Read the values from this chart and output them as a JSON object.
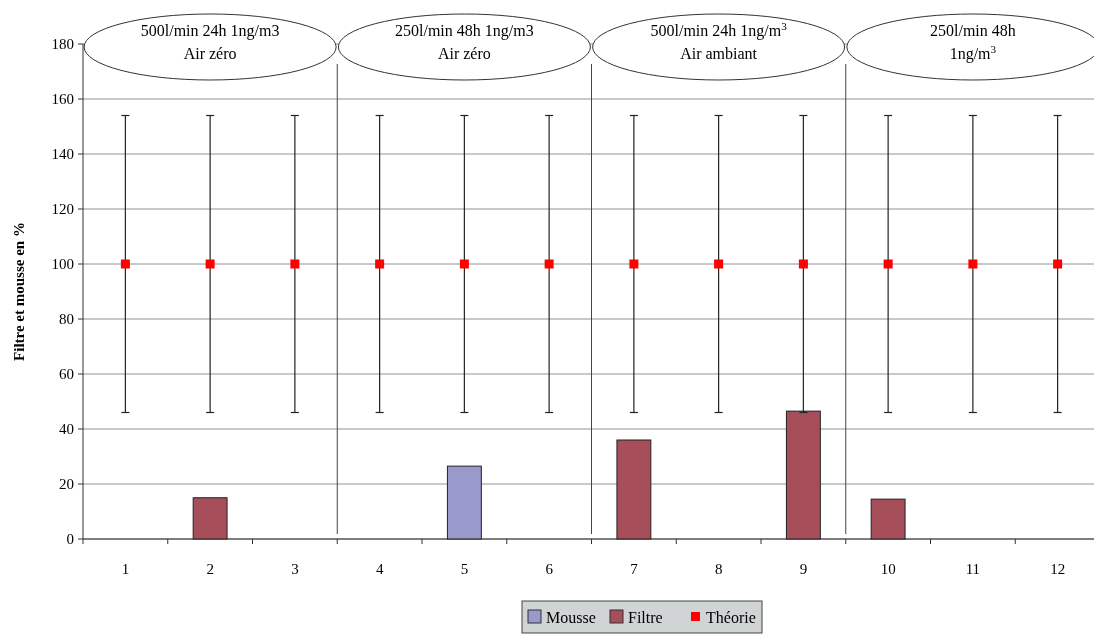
{
  "chart_data": {
    "type": "bar",
    "ylabel": "Filtre et mousse en %",
    "categories": [
      "1",
      "2",
      "3",
      "4",
      "5",
      "6",
      "7",
      "8",
      "9",
      "10",
      "11",
      "12"
    ],
    "ylim": [
      0,
      180
    ],
    "yticks": [
      0,
      20,
      40,
      60,
      80,
      100,
      120,
      140,
      160,
      180
    ],
    "series": [
      {
        "name": "Mousse",
        "color": "#9999cc",
        "values": [
          null,
          null,
          null,
          null,
          26.5,
          null,
          null,
          null,
          null,
          null,
          null,
          null
        ]
      },
      {
        "name": "Filtre",
        "color": "#a64f5b",
        "values": [
          null,
          15,
          null,
          null,
          null,
          null,
          36,
          null,
          46.5,
          14.5,
          null,
          null
        ]
      },
      {
        "name": "Théorie",
        "type": "scatter",
        "color": "#ff0000",
        "x": [
          "1",
          "2",
          "3",
          "4",
          "5",
          "6",
          "7",
          "8",
          "9",
          "10",
          "11",
          "12"
        ],
        "values": [
          100,
          100,
          100,
          100,
          100,
          100,
          100,
          100,
          100,
          100,
          100,
          100
        ],
        "errors": [
          54,
          54,
          54,
          54,
          54,
          54,
          54,
          54,
          54,
          54,
          54,
          54
        ]
      }
    ],
    "marker": "square",
    "grid": "y",
    "legend": "bottom",
    "annotations": [
      "500l/min 24h 1ng/m3\nAir zéro",
      "250l/min 48h 1ng/m3\nAir zéro",
      "500l/min 24h 1ng/m$^{3}$\nAir ambiant",
      "250l/min 48h\n1ng/m$^{3}$"
    ]
  }
}
